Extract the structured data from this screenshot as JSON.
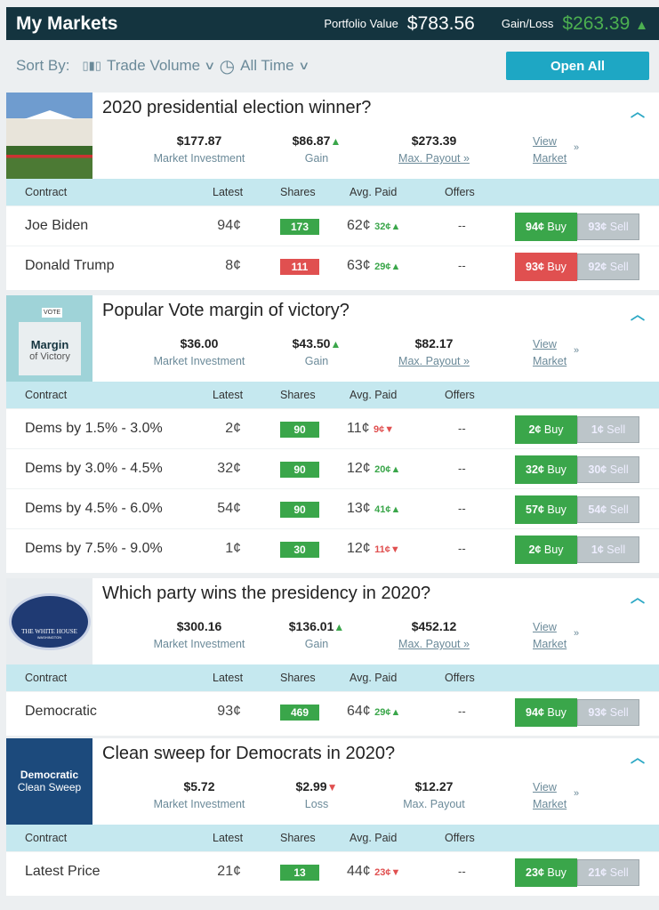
{
  "header": {
    "title": "My Markets",
    "portfolio_label": "Portfolio Value",
    "portfolio_value": "$783.56",
    "gain_label": "Gain/Loss",
    "gain_value": "$263.39"
  },
  "toolbar": {
    "sort_label": "Sort By:",
    "sort_value": "Trade Volume",
    "time_value": "All Time",
    "open_all": "Open All"
  },
  "columns": {
    "contract": "Contract",
    "latest": "Latest",
    "shares": "Shares",
    "avg": "Avg. Paid",
    "offers": "Offers"
  },
  "labels": {
    "investment": "Market Investment",
    "view": "View",
    "market": "Market"
  },
  "markets": [
    {
      "title": "2020 presidential election winner?",
      "investment": "$177.87",
      "gain": "$86.87",
      "gain_label": "Gain",
      "gain_dir": "up",
      "payout": "$273.39",
      "payout_label": "Max. Payout »",
      "rows": [
        {
          "contract": "Joe Biden",
          "latest": "94¢",
          "shares": "173",
          "shares_color": "green",
          "avg": "62¢",
          "delta": "32¢",
          "dir": "up",
          "offers": "--",
          "buy": "94¢",
          "buy_label": "Buy",
          "buy_color": "green",
          "sell": "93¢",
          "sell_label": "Sell"
        },
        {
          "contract": "Donald Trump",
          "latest": "8¢",
          "shares": "111",
          "shares_color": "red",
          "avg": "63¢",
          "delta": "29¢",
          "dir": "up",
          "offers": "--",
          "buy": "93¢",
          "buy_label": "Buy",
          "buy_color": "red",
          "sell": "92¢",
          "sell_label": "Sell"
        }
      ]
    },
    {
      "title": "Popular Vote margin of victory?",
      "image_text": [
        "VOTE",
        "Margin",
        "of Victory"
      ],
      "investment": "$36.00",
      "gain": "$43.50",
      "gain_label": "Gain",
      "gain_dir": "up",
      "payout": "$82.17",
      "payout_label": "Max. Payout »",
      "rows": [
        {
          "contract": "Dems by 1.5% - 3.0%",
          "latest": "2¢",
          "shares": "90",
          "shares_color": "green",
          "avg": "11¢",
          "delta": "9¢",
          "dir": "down",
          "offers": "--",
          "buy": "2¢",
          "buy_label": "Buy",
          "buy_color": "green",
          "sell": "1¢",
          "sell_label": "Sell"
        },
        {
          "contract": "Dems by 3.0% - 4.5%",
          "latest": "32¢",
          "shares": "90",
          "shares_color": "green",
          "avg": "12¢",
          "delta": "20¢",
          "dir": "up",
          "offers": "--",
          "buy": "32¢",
          "buy_label": "Buy",
          "buy_color": "green",
          "sell": "30¢",
          "sell_label": "Sell"
        },
        {
          "contract": "Dems by 4.5% - 6.0%",
          "latest": "54¢",
          "shares": "90",
          "shares_color": "green",
          "avg": "13¢",
          "delta": "41¢",
          "dir": "up",
          "offers": "--",
          "buy": "57¢",
          "buy_label": "Buy",
          "buy_color": "green",
          "sell": "54¢",
          "sell_label": "Sell"
        },
        {
          "contract": "Dems by 7.5% - 9.0%",
          "latest": "1¢",
          "shares": "30",
          "shares_color": "green",
          "avg": "12¢",
          "delta": "11¢",
          "dir": "down",
          "offers": "--",
          "buy": "2¢",
          "buy_label": "Buy",
          "buy_color": "green",
          "sell": "1¢",
          "sell_label": "Sell"
        }
      ]
    },
    {
      "title": "Which party wins the presidency in 2020?",
      "image_text": [
        "THE WHITE HOUSE",
        "WASHINGTON"
      ],
      "investment": "$300.16",
      "gain": "$136.01",
      "gain_label": "Gain",
      "gain_dir": "up",
      "payout": "$452.12",
      "payout_label": "Max. Payout »",
      "rows": [
        {
          "contract": "Democratic",
          "latest": "93¢",
          "shares": "469",
          "shares_color": "green",
          "avg": "64¢",
          "delta": "29¢",
          "dir": "up",
          "offers": "--",
          "buy": "94¢",
          "buy_label": "Buy",
          "buy_color": "green",
          "sell": "93¢",
          "sell_label": "Sell"
        }
      ]
    },
    {
      "title": "Clean sweep for Democrats in 2020?",
      "image_text": [
        "Democratic",
        "Clean Sweep"
      ],
      "investment": "$5.72",
      "gain": "$2.99",
      "gain_label": "Loss",
      "gain_dir": "down",
      "payout": "$12.27",
      "payout_label": "Max. Payout",
      "rows": [
        {
          "contract": "Latest Price",
          "latest": "21¢",
          "shares": "13",
          "shares_color": "green",
          "avg": "44¢",
          "delta": "23¢",
          "dir": "down",
          "offers": "--",
          "buy": "23¢",
          "buy_label": "Buy",
          "buy_color": "green",
          "sell": "21¢",
          "sell_label": "Sell"
        }
      ]
    }
  ]
}
